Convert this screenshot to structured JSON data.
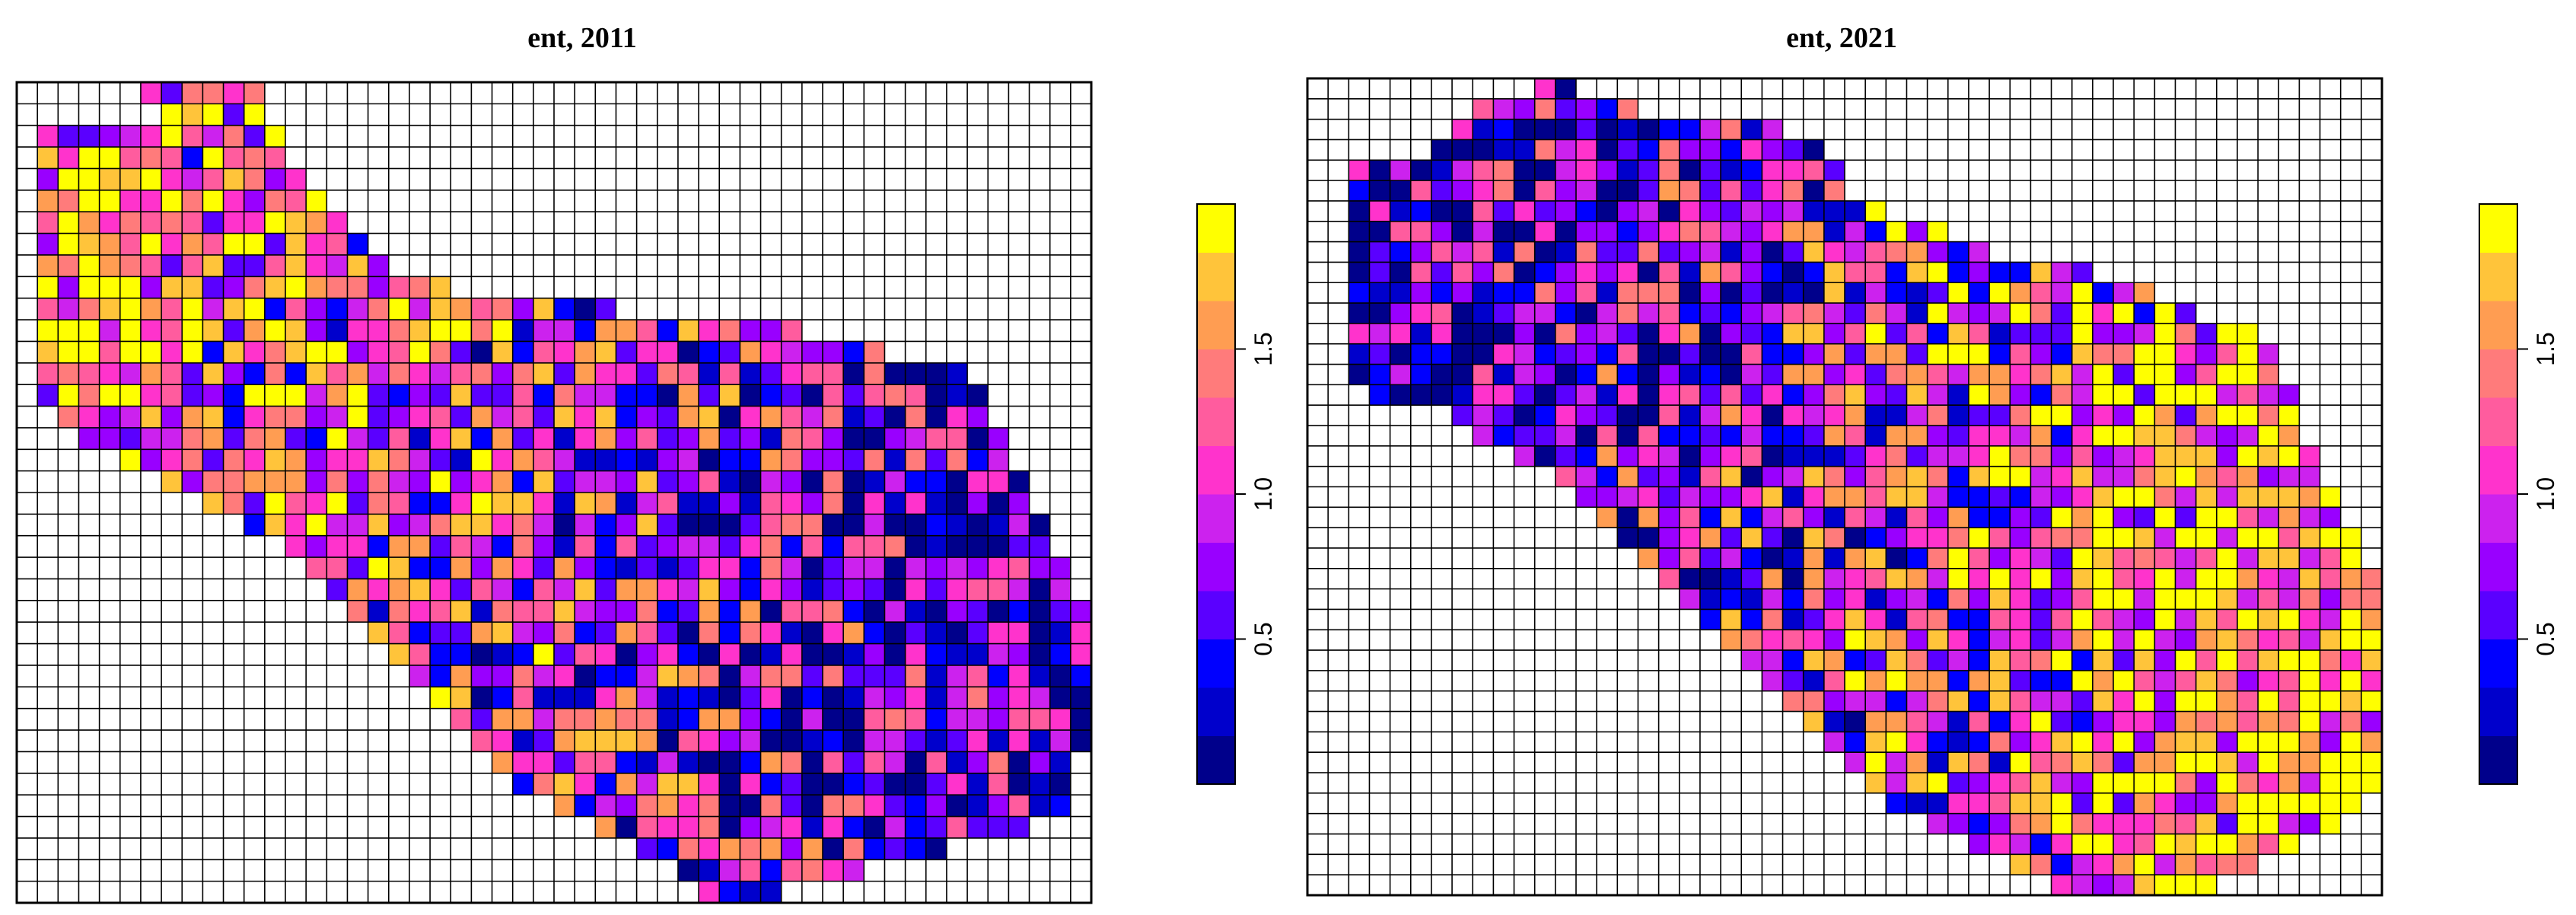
{
  "chart_data": [
    {
      "type": "heatmap",
      "title": "ent, 2011",
      "xlabel": "",
      "ylabel": "",
      "grid": true,
      "grid_cols": 52,
      "grid_rows": 38,
      "value_range": [
        0,
        2
      ],
      "colorbar": {
        "ticks": [
          0.5,
          1.0,
          1.5
        ],
        "tick_labels": [
          "0.5",
          "1.0",
          "1.5"
        ],
        "placement": "right"
      },
      "colors": [
        "#00008B",
        "#0000CC",
        "#0000FF",
        "#5A00FF",
        "#9900FF",
        "#CC22EE",
        "#FF33CC",
        "#FF5C9E",
        "#FF7B7B",
        "#FF9D52",
        "#FFC43A",
        "#FFFF00"
      ],
      "region_rows": [
        [
          6,
          11
        ],
        [
          7,
          11
        ],
        [
          1,
          12
        ],
        [
          1,
          12
        ],
        [
          1,
          13
        ],
        [
          1,
          14
        ],
        [
          1,
          15
        ],
        [
          1,
          16
        ],
        [
          1,
          17
        ],
        [
          1,
          20
        ],
        [
          1,
          28
        ],
        [
          1,
          37
        ],
        [
          1,
          41
        ],
        [
          1,
          45
        ],
        [
          1,
          46
        ],
        [
          2,
          46
        ],
        [
          3,
          47
        ],
        [
          5,
          47
        ],
        [
          7,
          48
        ],
        [
          9,
          48
        ],
        [
          11,
          49
        ],
        [
          13,
          49
        ],
        [
          14,
          50
        ],
        [
          15,
          50
        ],
        [
          16,
          51
        ],
        [
          17,
          51
        ],
        [
          18,
          51
        ],
        [
          19,
          51
        ],
        [
          20,
          51
        ],
        [
          21,
          51
        ],
        [
          22,
          51
        ],
        [
          23,
          50
        ],
        [
          24,
          50
        ],
        [
          26,
          50
        ],
        [
          28,
          48
        ],
        [
          30,
          44
        ],
        [
          32,
          40
        ],
        [
          33,
          36
        ]
      ],
      "seed": 2011,
      "gradient": "left"
    },
    {
      "type": "heatmap",
      "title": "ent, 2021",
      "xlabel": "",
      "ylabel": "",
      "grid": true,
      "grid_cols": 52,
      "grid_rows": 40,
      "value_range": [
        0,
        2
      ],
      "colorbar": {
        "ticks": [
          0.5,
          1.0,
          1.5
        ],
        "tick_labels": [
          "0.5",
          "1.0",
          "1.5"
        ],
        "placement": "right"
      },
      "colors": [
        "#00008B",
        "#0000CC",
        "#0000FF",
        "#5A00FF",
        "#9900FF",
        "#CC22EE",
        "#FF33CC",
        "#FF5C9E",
        "#FF7B7B",
        "#FF9D52",
        "#FFC43A",
        "#FFFF00"
      ],
      "region_rows": [
        [
          11,
          12
        ],
        [
          8,
          15
        ],
        [
          7,
          22
        ],
        [
          6,
          24
        ],
        [
          2,
          25
        ],
        [
          2,
          25
        ],
        [
          2,
          27
        ],
        [
          2,
          30
        ],
        [
          2,
          32
        ],
        [
          2,
          37
        ],
        [
          2,
          40
        ],
        [
          2,
          42
        ],
        [
          2,
          45
        ],
        [
          2,
          46
        ],
        [
          2,
          46
        ],
        [
          3,
          47
        ],
        [
          7,
          47
        ],
        [
          8,
          47
        ],
        [
          10,
          48
        ],
        [
          12,
          48
        ],
        [
          13,
          49
        ],
        [
          14,
          49
        ],
        [
          15,
          50
        ],
        [
          16,
          50
        ],
        [
          17,
          51
        ],
        [
          18,
          51
        ],
        [
          19,
          51
        ],
        [
          20,
          51
        ],
        [
          21,
          51
        ],
        [
          22,
          51
        ],
        [
          23,
          51
        ],
        [
          24,
          51
        ],
        [
          25,
          51
        ],
        [
          26,
          51
        ],
        [
          27,
          51
        ],
        [
          28,
          50
        ],
        [
          30,
          49
        ],
        [
          32,
          47
        ],
        [
          34,
          45
        ],
        [
          36,
          43
        ]
      ],
      "seed": 2021,
      "gradient": "right"
    }
  ]
}
